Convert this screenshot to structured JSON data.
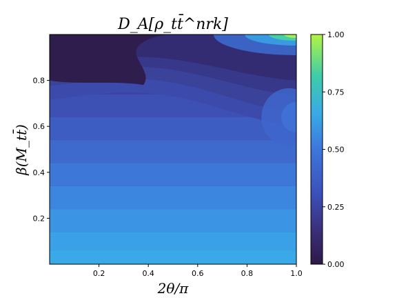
{
  "chart_data": {
    "type": "heatmap",
    "title": "D_A[ρ_tt̄^nrk]",
    "xlabel": "2θ/π",
    "ylabel": "β(M_tt̄)",
    "xlim": [
      0.0,
      1.0
    ],
    "ylim": [
      0.0,
      1.0
    ],
    "x_ticks": [
      "0.2",
      "0.4",
      "0.6",
      "0.8",
      "1.0"
    ],
    "y_ticks": [
      "0.2",
      "0.4",
      "0.6",
      "0.8"
    ],
    "colorbar": {
      "range": [
        0.0,
        1.0
      ],
      "ticks": [
        "0.00",
        "0.25",
        "0.50",
        "0.75",
        "1.00"
      ],
      "colormap": "viridis-like",
      "colors": [
        "#2e1a47",
        "#3b3f9a",
        "#3d6fd8",
        "#39a8e6",
        "#48d28a",
        "#b2f442"
      ]
    },
    "grid": false,
    "value_samples": [
      {
        "x": 0.1,
        "y": 0.95,
        "value": 0.0
      },
      {
        "x": 0.3,
        "y": 0.9,
        "value": 0.02
      },
      {
        "x": 0.9,
        "y": 0.95,
        "value": 0.45
      },
      {
        "x": 1.0,
        "y": 1.0,
        "value": 0.9
      },
      {
        "x": 0.5,
        "y": 0.5,
        "value": 0.3
      },
      {
        "x": 0.5,
        "y": 0.2,
        "value": 0.36
      },
      {
        "x": 0.5,
        "y": 0.05,
        "value": 0.42
      },
      {
        "x": 0.95,
        "y": 0.65,
        "value": 0.4
      }
    ]
  }
}
